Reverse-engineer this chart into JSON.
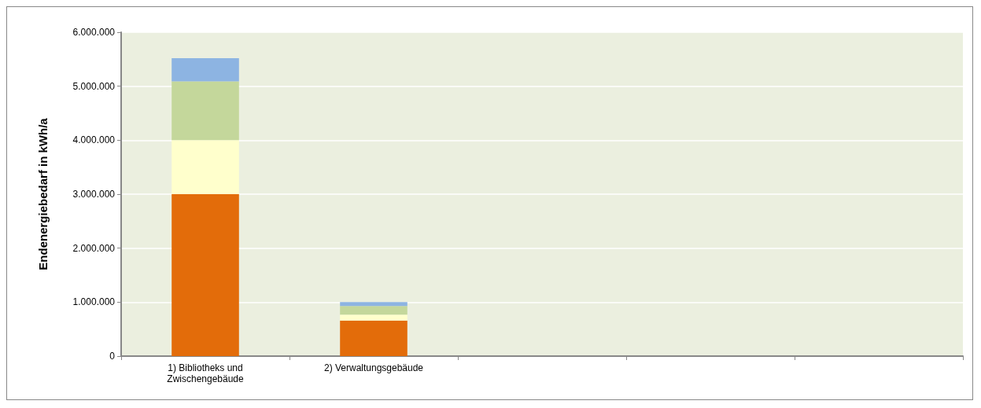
{
  "chart_data": {
    "type": "bar",
    "stacked": true,
    "ylabel": "Endenergiebedarf in kWh/a",
    "categories": [
      "1) Bibliotheks und\nZwischengebäude",
      "2) Verwaltungsgebäude",
      null,
      null,
      null
    ],
    "series": [
      {
        "color": "#e36c0a",
        "values": [
          3000000,
          660000,
          null,
          null,
          null
        ]
      },
      {
        "color": "#ffffcc",
        "values": [
          1000000,
          110000,
          null,
          null,
          null
        ]
      },
      {
        "color": "#c4d79b",
        "values": [
          1090000,
          160000,
          null,
          null,
          null
        ]
      },
      {
        "color": "#8db4e2",
        "values": [
          430000,
          70000,
          null,
          null,
          null
        ]
      }
    ],
    "ylim": [
      0,
      6000000
    ],
    "yticks": [
      0,
      {
        "value": 1000000,
        "label": "1.000.000"
      },
      {
        "value": 2000000,
        "label": "2.000.000"
      },
      {
        "value": 3000000,
        "label": "3.000.000"
      },
      {
        "value": 4000000,
        "label": "4.000.000"
      },
      {
        "value": 5000000,
        "label": "5.000.000"
      },
      {
        "value": 6000000,
        "label": "6.000.000"
      }
    ],
    "grid": "y"
  }
}
